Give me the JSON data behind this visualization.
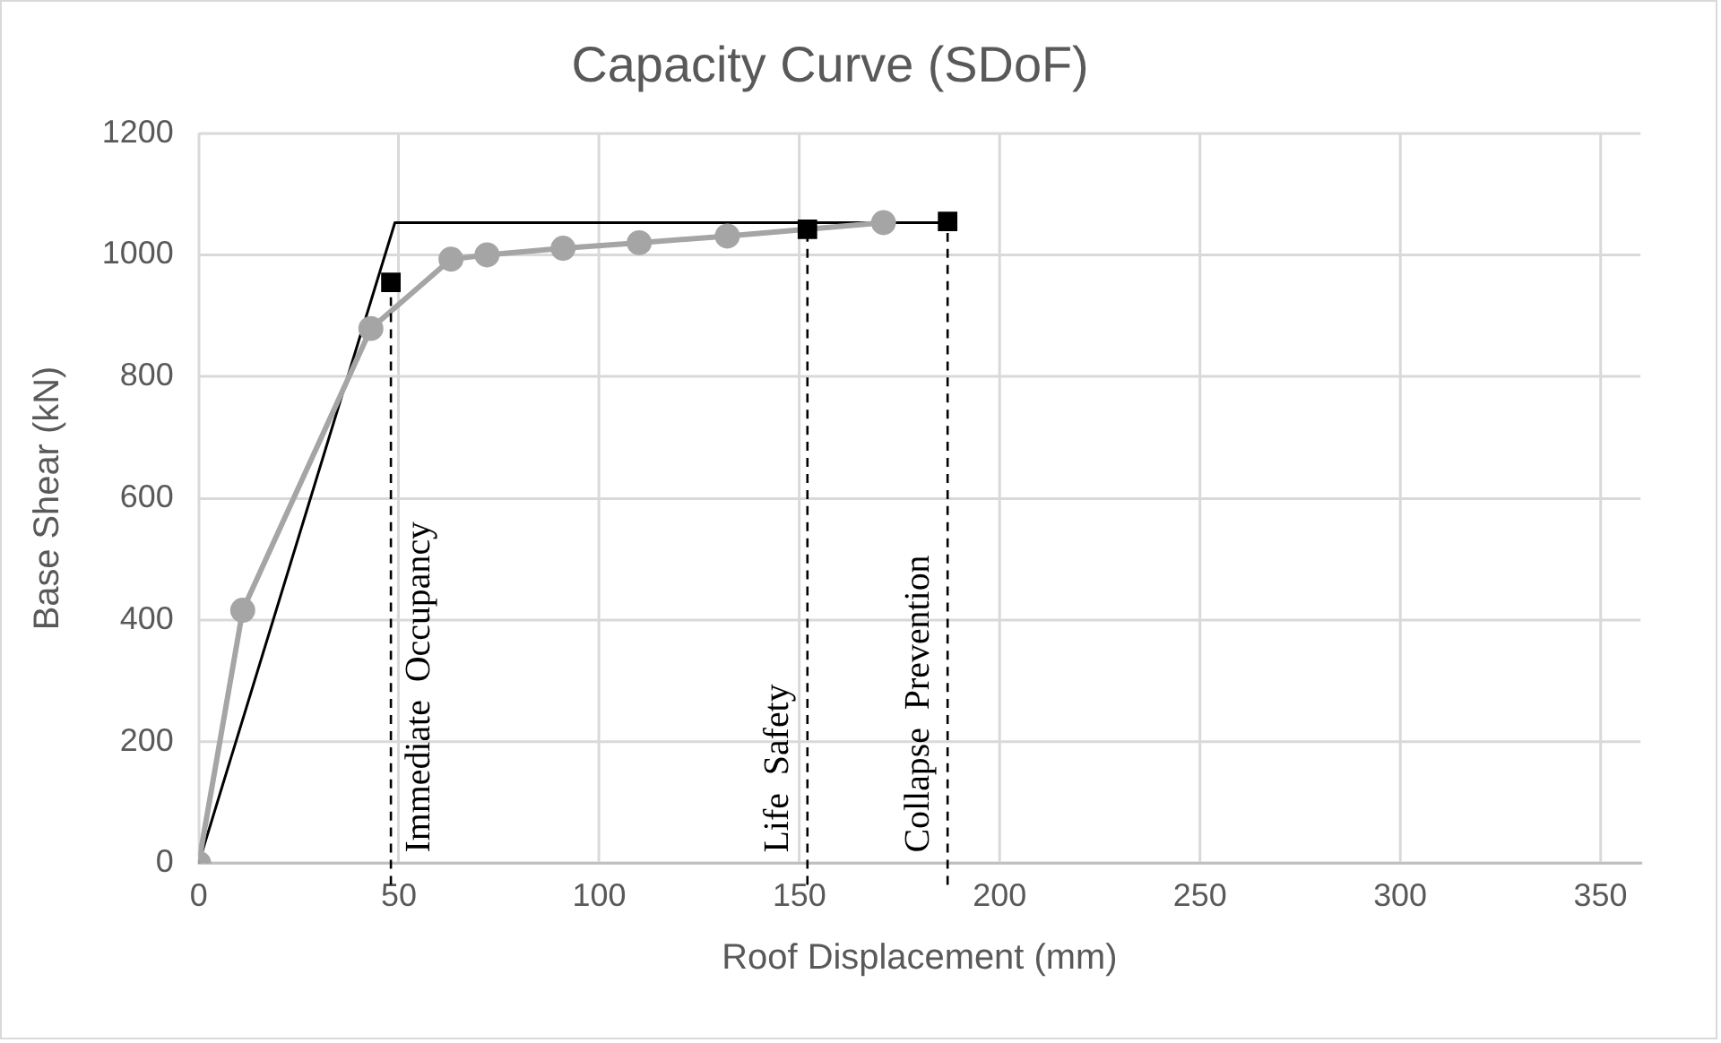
{
  "chart_data": {
    "type": "line",
    "title": "Capacity Curve (SDoF)",
    "xlabel": "Roof Displacement (mm)",
    "ylabel": "Base Shear (kN)",
    "series": [
      {
        "color": "#a5a5a5",
        "marker": "circle",
        "x": [
          0,
          11,
          43,
          63,
          72,
          91,
          110,
          132,
          171
        ],
        "values": [
          0,
          416,
          879,
          993,
          1000,
          1011,
          1020,
          1031,
          1053
        ]
      },
      {
        "color": "#000000",
        "marker": "none",
        "x": [
          0,
          49,
          187
        ],
        "values": [
          0,
          1053,
          1053
        ]
      },
      {
        "type": "scatter",
        "color": "#000000",
        "marker": "square",
        "x": [
          48,
          152,
          187
        ],
        "values": [
          955,
          1042,
          1055
        ]
      }
    ],
    "ref_lines": [
      {
        "axis": "x",
        "value": 48,
        "label": "Immediate  Occupancy",
        "color": "#000000",
        "line_style": "dashed"
      },
      {
        "axis": "x",
        "value": 152,
        "label": "Life  Safety",
        "color": "#000000",
        "line_style": "dashed"
      },
      {
        "axis": "x",
        "value": 187,
        "label": "Collapse  Prevention",
        "color": "#000000",
        "line_style": "dashed"
      }
    ],
    "xlim": [
      0,
      360
    ],
    "xticks": [
      0,
      50,
      100,
      150,
      200,
      250,
      300,
      350
    ],
    "ylim": [
      0,
      1200
    ],
    "yticks": [
      0,
      200,
      400,
      600,
      800,
      1000,
      1200
    ],
    "grid": true,
    "legend": false
  }
}
